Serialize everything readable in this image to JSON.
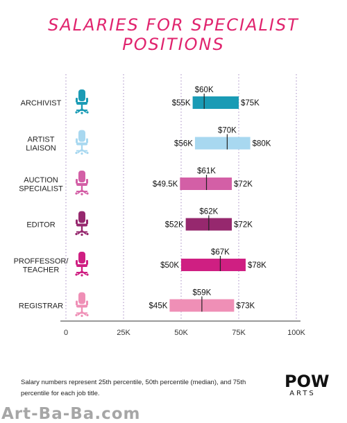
{
  "title_line1": "SALARIES FOR SPECIALIST",
  "title_line2": "POSITIONS",
  "footnote": "Salary numbers represent 25th percentile, 50th percentile (median), and 75th percentile for each job title.",
  "logo": {
    "main": "POW",
    "sub": "ARTS"
  },
  "watermark": "Art-Ba-Ba.com",
  "chart_data": {
    "type": "bar",
    "subtype": "floating-range",
    "title": "SALARIES FOR SPECIALIST POSITIONS",
    "categories": [
      [
        "ARCHIVIST"
      ],
      [
        "ARTIST",
        "LIAISON"
      ],
      [
        "AUCTION",
        "SPECIALIST"
      ],
      [
        "EDITOR"
      ],
      [
        "PROFFESSOR/",
        "TEACHER"
      ],
      [
        "REGISTRAR"
      ]
    ],
    "p25": [
      55,
      56,
      49.5,
      52,
      50,
      45
    ],
    "median": [
      60,
      70,
      61,
      62,
      67,
      59
    ],
    "p75": [
      75,
      80,
      72,
      72,
      78,
      73
    ],
    "p25_labels": [
      "$55K",
      "$56K",
      "$49.5K",
      "$52K",
      "$50K",
      "$45K"
    ],
    "median_labels": [
      "$60K",
      "$70K",
      "$61K",
      "$62K",
      "$67K",
      "$59K"
    ],
    "p75_labels": [
      "$75K",
      "$80K",
      "$72K",
      "$72K",
      "$78K",
      "$73K"
    ],
    "colors": [
      "#1a9bb5",
      "#a8d8f0",
      "#d35fa6",
      "#96286e",
      "#cf1f82",
      "#ef8fb6"
    ],
    "x_ticks": [
      0,
      25,
      50,
      75,
      100
    ],
    "x_tick_labels": [
      "0",
      "25K",
      "50K",
      "75K",
      "100K"
    ],
    "xlim": [
      0,
      100
    ],
    "xlabel": "",
    "ylabel": "",
    "grid": true,
    "icon": "office-chair-icon"
  }
}
